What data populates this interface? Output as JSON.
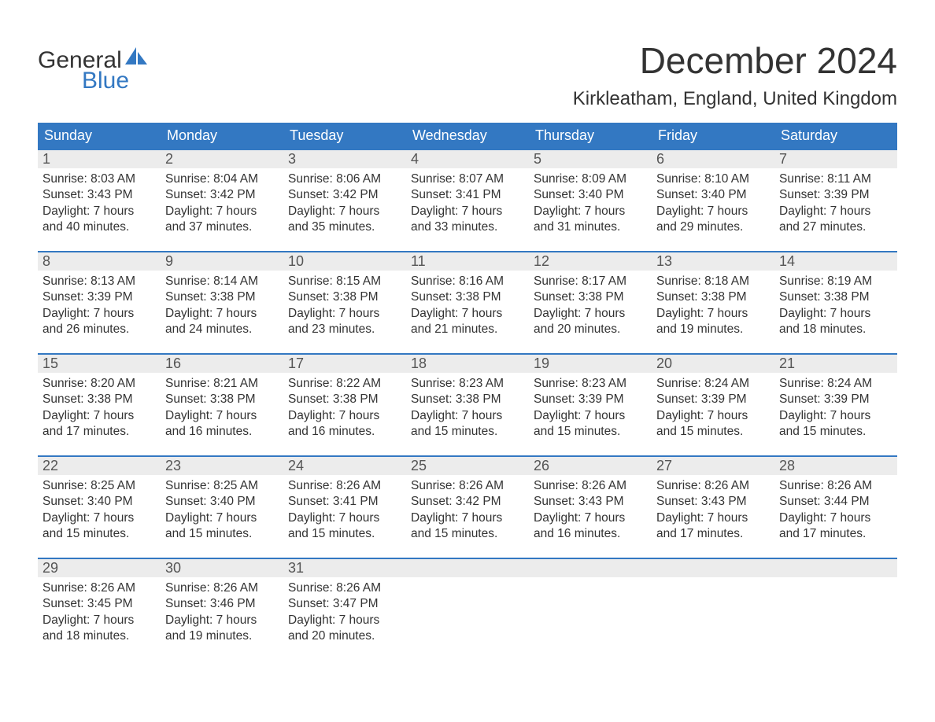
{
  "logo": {
    "word1": "General",
    "word2": "Blue",
    "accent_color": "#3378c2"
  },
  "title": "December 2024",
  "location": "Kirkleatham, England, United Kingdom",
  "weekdays": [
    "Sunday",
    "Monday",
    "Tuesday",
    "Wednesday",
    "Thursday",
    "Friday",
    "Saturday"
  ],
  "colors": {
    "header_bg": "#3378c2",
    "header_text": "#ffffff",
    "daynum_bg": "#ececec",
    "text": "#333333",
    "rule": "#3378c2"
  },
  "typography": {
    "title_fontsize": 46,
    "location_fontsize": 24,
    "weekday_fontsize": 18,
    "daynum_fontsize": 18,
    "body_fontsize": 15.5
  },
  "labels": {
    "sunrise": "Sunrise:",
    "sunset": "Sunset:",
    "daylight": "Daylight:"
  },
  "weeks": [
    [
      {
        "n": "1",
        "sunrise": "8:03 AM",
        "sunset": "3:43 PM",
        "daylight": "7 hours and 40 minutes."
      },
      {
        "n": "2",
        "sunrise": "8:04 AM",
        "sunset": "3:42 PM",
        "daylight": "7 hours and 37 minutes."
      },
      {
        "n": "3",
        "sunrise": "8:06 AM",
        "sunset": "3:42 PM",
        "daylight": "7 hours and 35 minutes."
      },
      {
        "n": "4",
        "sunrise": "8:07 AM",
        "sunset": "3:41 PM",
        "daylight": "7 hours and 33 minutes."
      },
      {
        "n": "5",
        "sunrise": "8:09 AM",
        "sunset": "3:40 PM",
        "daylight": "7 hours and 31 minutes."
      },
      {
        "n": "6",
        "sunrise": "8:10 AM",
        "sunset": "3:40 PM",
        "daylight": "7 hours and 29 minutes."
      },
      {
        "n": "7",
        "sunrise": "8:11 AM",
        "sunset": "3:39 PM",
        "daylight": "7 hours and 27 minutes."
      }
    ],
    [
      {
        "n": "8",
        "sunrise": "8:13 AM",
        "sunset": "3:39 PM",
        "daylight": "7 hours and 26 minutes."
      },
      {
        "n": "9",
        "sunrise": "8:14 AM",
        "sunset": "3:38 PM",
        "daylight": "7 hours and 24 minutes."
      },
      {
        "n": "10",
        "sunrise": "8:15 AM",
        "sunset": "3:38 PM",
        "daylight": "7 hours and 23 minutes."
      },
      {
        "n": "11",
        "sunrise": "8:16 AM",
        "sunset": "3:38 PM",
        "daylight": "7 hours and 21 minutes."
      },
      {
        "n": "12",
        "sunrise": "8:17 AM",
        "sunset": "3:38 PM",
        "daylight": "7 hours and 20 minutes."
      },
      {
        "n": "13",
        "sunrise": "8:18 AM",
        "sunset": "3:38 PM",
        "daylight": "7 hours and 19 minutes."
      },
      {
        "n": "14",
        "sunrise": "8:19 AM",
        "sunset": "3:38 PM",
        "daylight": "7 hours and 18 minutes."
      }
    ],
    [
      {
        "n": "15",
        "sunrise": "8:20 AM",
        "sunset": "3:38 PM",
        "daylight": "7 hours and 17 minutes."
      },
      {
        "n": "16",
        "sunrise": "8:21 AM",
        "sunset": "3:38 PM",
        "daylight": "7 hours and 16 minutes."
      },
      {
        "n": "17",
        "sunrise": "8:22 AM",
        "sunset": "3:38 PM",
        "daylight": "7 hours and 16 minutes."
      },
      {
        "n": "18",
        "sunrise": "8:23 AM",
        "sunset": "3:38 PM",
        "daylight": "7 hours and 15 minutes."
      },
      {
        "n": "19",
        "sunrise": "8:23 AM",
        "sunset": "3:39 PM",
        "daylight": "7 hours and 15 minutes."
      },
      {
        "n": "20",
        "sunrise": "8:24 AM",
        "sunset": "3:39 PM",
        "daylight": "7 hours and 15 minutes."
      },
      {
        "n": "21",
        "sunrise": "8:24 AM",
        "sunset": "3:39 PM",
        "daylight": "7 hours and 15 minutes."
      }
    ],
    [
      {
        "n": "22",
        "sunrise": "8:25 AM",
        "sunset": "3:40 PM",
        "daylight": "7 hours and 15 minutes."
      },
      {
        "n": "23",
        "sunrise": "8:25 AM",
        "sunset": "3:40 PM",
        "daylight": "7 hours and 15 minutes."
      },
      {
        "n": "24",
        "sunrise": "8:26 AM",
        "sunset": "3:41 PM",
        "daylight": "7 hours and 15 minutes."
      },
      {
        "n": "25",
        "sunrise": "8:26 AM",
        "sunset": "3:42 PM",
        "daylight": "7 hours and 15 minutes."
      },
      {
        "n": "26",
        "sunrise": "8:26 AM",
        "sunset": "3:43 PM",
        "daylight": "7 hours and 16 minutes."
      },
      {
        "n": "27",
        "sunrise": "8:26 AM",
        "sunset": "3:43 PM",
        "daylight": "7 hours and 17 minutes."
      },
      {
        "n": "28",
        "sunrise": "8:26 AM",
        "sunset": "3:44 PM",
        "daylight": "7 hours and 17 minutes."
      }
    ],
    [
      {
        "n": "29",
        "sunrise": "8:26 AM",
        "sunset": "3:45 PM",
        "daylight": "7 hours and 18 minutes."
      },
      {
        "n": "30",
        "sunrise": "8:26 AM",
        "sunset": "3:46 PM",
        "daylight": "7 hours and 19 minutes."
      },
      {
        "n": "31",
        "sunrise": "8:26 AM",
        "sunset": "3:47 PM",
        "daylight": "7 hours and 20 minutes."
      },
      {
        "empty": true
      },
      {
        "empty": true
      },
      {
        "empty": true
      },
      {
        "empty": true
      }
    ]
  ]
}
